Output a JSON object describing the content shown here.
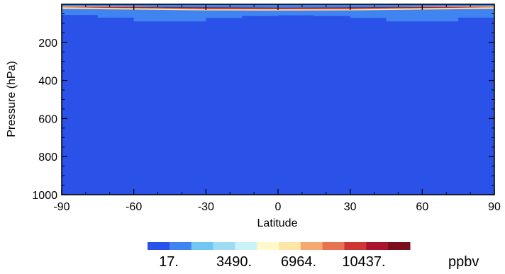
{
  "chart_data": {
    "type": "heatmap",
    "xlabel": "Latitude",
    "ylabel": "Pressure (hPa)",
    "xlim": [
      -90,
      90
    ],
    "ylim": [
      1000,
      0
    ],
    "x_ticks": [
      -90,
      -60,
      -30,
      0,
      30,
      60,
      90
    ],
    "x_tick_labels": [
      "-90",
      "-60",
      "-30",
      "0",
      "30",
      "60",
      "90"
    ],
    "y_ticks": [
      200,
      400,
      600,
      800,
      1000
    ],
    "y_tick_labels": [
      "200",
      "400",
      "600",
      "800",
      "1000"
    ],
    "background_color": "#2a52e8",
    "bands": [
      {
        "from_p": 0,
        "color": "#7a0c1e",
        "upper": [
          [
            -90,
            18
          ],
          [
            -40,
            16
          ],
          [
            0,
            18
          ],
          [
            40,
            16
          ],
          [
            90,
            18
          ]
        ],
        "lower": [
          [
            -90,
            18
          ],
          [
            -40,
            20
          ],
          [
            0,
            21
          ],
          [
            40,
            20
          ],
          [
            90,
            18
          ]
        ]
      },
      {
        "from_p": 0,
        "color": "#d03535",
        "upper": [
          [
            -90,
            14
          ],
          [
            -60,
            14
          ],
          [
            -30,
            19
          ],
          [
            30,
            19
          ],
          [
            60,
            14
          ],
          [
            90,
            14
          ]
        ],
        "lower": [
          [
            -90,
            14
          ],
          [
            -60,
            19
          ],
          [
            -30,
            24
          ],
          [
            0,
            25
          ],
          [
            30,
            24
          ],
          [
            60,
            19
          ],
          [
            90,
            14
          ]
        ]
      },
      {
        "color": "#f5a870",
        "upper": [
          [
            -90,
            10
          ],
          [
            -60,
            12
          ],
          [
            -30,
            22
          ],
          [
            30,
            22
          ],
          [
            60,
            12
          ],
          [
            90,
            10
          ]
        ],
        "lower": [
          [
            -90,
            18
          ],
          [
            -60,
            22
          ],
          [
            -30,
            28
          ],
          [
            0,
            28
          ],
          [
            30,
            28
          ],
          [
            60,
            22
          ],
          [
            90,
            18
          ]
        ]
      },
      {
        "color": "#fde6a6",
        "upper": [
          [
            -90,
            14
          ],
          [
            -60,
            18
          ],
          [
            -30,
            26
          ],
          [
            30,
            26
          ],
          [
            60,
            18
          ],
          [
            90,
            14
          ]
        ],
        "lower": [
          [
            -90,
            24
          ],
          [
            -60,
            28
          ],
          [
            -30,
            32
          ],
          [
            0,
            33
          ],
          [
            30,
            32
          ],
          [
            60,
            28
          ],
          [
            90,
            24
          ]
        ]
      }
    ],
    "contours": [
      {
        "color": "#bdeef7",
        "depth": [
          [
            -90,
            30
          ],
          [
            -75,
            34
          ],
          [
            -60,
            38
          ],
          [
            -45,
            40
          ],
          [
            -30,
            40
          ],
          [
            -15,
            38
          ],
          [
            0,
            36
          ],
          [
            15,
            38
          ],
          [
            30,
            40
          ],
          [
            45,
            40
          ],
          [
            60,
            38
          ],
          [
            75,
            34
          ],
          [
            90,
            30
          ]
        ]
      },
      {
        "color": "#6fc7f2",
        "depth": [
          [
            -90,
            46
          ],
          [
            -75,
            52
          ],
          [
            -60,
            58
          ],
          [
            -45,
            58
          ],
          [
            -30,
            54
          ],
          [
            -15,
            48
          ],
          [
            0,
            46
          ],
          [
            15,
            48
          ],
          [
            30,
            54
          ],
          [
            45,
            58
          ],
          [
            60,
            58
          ],
          [
            75,
            52
          ],
          [
            90,
            46
          ]
        ]
      },
      {
        "color": "#3f84f0",
        "depth": [
          [
            -90,
            56
          ],
          [
            -75,
            70
          ],
          [
            -60,
            90
          ],
          [
            -45,
            90
          ],
          [
            -30,
            72
          ],
          [
            -15,
            62
          ],
          [
            0,
            58
          ],
          [
            15,
            62
          ],
          [
            30,
            72
          ],
          [
            45,
            90
          ],
          [
            60,
            90
          ],
          [
            75,
            70
          ],
          [
            90,
            56
          ]
        ]
      }
    ],
    "colorbar": {
      "colors": [
        "#2a52e8",
        "#3f84f0",
        "#6fc7f2",
        "#9fdcf4",
        "#c9f3f7",
        "#fff9cc",
        "#fde6a6",
        "#f5a870",
        "#e87350",
        "#d03535",
        "#a8142c",
        "#7a0c1e"
      ],
      "tick_labels": [
        "17.",
        "3490.",
        "6964.",
        "10437."
      ],
      "unit": "ppbv"
    }
  }
}
